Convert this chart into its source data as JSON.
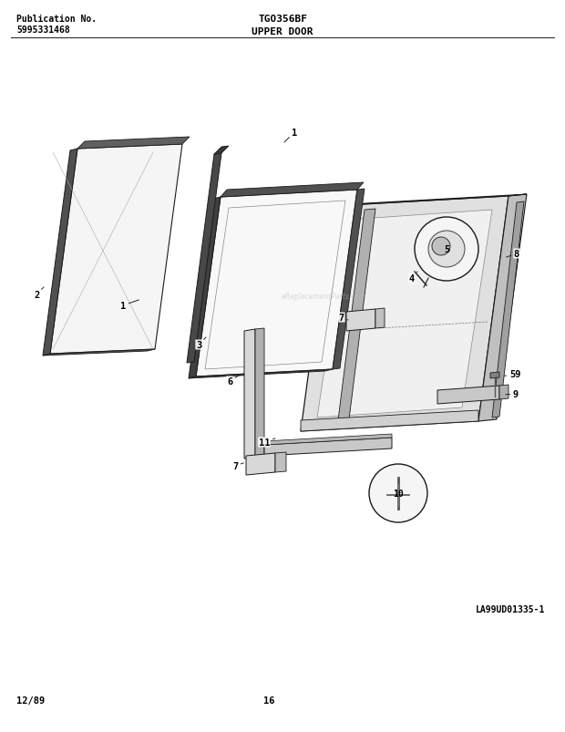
{
  "bg_color": "#ffffff",
  "header_left_line1": "Publication No.",
  "header_left_line2": "5995331468",
  "header_center": "TGO356BF",
  "header_center2": "UPPER DOOR",
  "footer_left": "12/89",
  "footer_center": "16",
  "diagram_label": "LA99UD01335-1",
  "lc": "#1a1a1a",
  "lw": 0.8
}
